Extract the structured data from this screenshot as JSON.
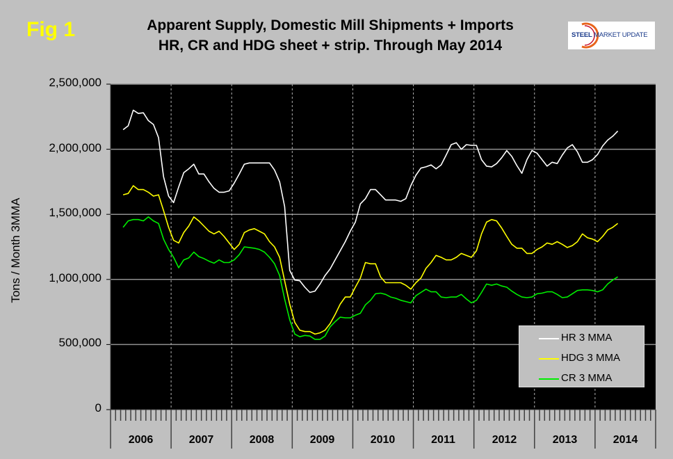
{
  "header": {
    "fig_label": "Fig 1",
    "title_line1": "Apparent Supply, Domestic Mill Shipments + Imports",
    "title_line2": "HR, CR and HDG sheet + strip. Through May 2014",
    "logo_text": "STEEL MARKET UPDATE"
  },
  "chart_data": {
    "type": "line",
    "title": "Apparent Supply, Domestic Mill Shipments + Imports HR, CR and HDG sheet + strip. Through May 2014",
    "xlabel": "",
    "ylabel": "Tons / Month 3MMA",
    "ylim": [
      0,
      2500000
    ],
    "yticks": [
      "0",
      "500,000",
      "1,000,000",
      "1,500,000",
      "2,000,000",
      "2,500,000"
    ],
    "ytick_values": [
      0,
      500000,
      1000000,
      1500000,
      2000000,
      2500000
    ],
    "xtick_labels": [
      "2006",
      "2007",
      "2008",
      "2009",
      "2010",
      "2011",
      "2012",
      "2013",
      "2014"
    ],
    "xlim": [
      "2006-01",
      "2014-12"
    ],
    "grid": "horizontal solid at major y ticks, vertical dotted at year boundaries",
    "background": "#000000",
    "legend_position": "bottom-right",
    "x": [
      "2006-03",
      "2006-04",
      "2006-05",
      "2006-06",
      "2006-07",
      "2006-08",
      "2006-09",
      "2006-10",
      "2006-11",
      "2006-12",
      "2007-01",
      "2007-02",
      "2007-03",
      "2007-04",
      "2007-05",
      "2007-06",
      "2007-07",
      "2007-08",
      "2007-09",
      "2007-10",
      "2007-11",
      "2007-12",
      "2008-01",
      "2008-02",
      "2008-03",
      "2008-04",
      "2008-05",
      "2008-06",
      "2008-07",
      "2008-08",
      "2008-09",
      "2008-10",
      "2008-11",
      "2008-12",
      "2009-01",
      "2009-02",
      "2009-03",
      "2009-04",
      "2009-05",
      "2009-06",
      "2009-07",
      "2009-08",
      "2009-09",
      "2009-10",
      "2009-11",
      "2009-12",
      "2010-01",
      "2010-02",
      "2010-03",
      "2010-04",
      "2010-05",
      "2010-06",
      "2010-07",
      "2010-08",
      "2010-09",
      "2010-10",
      "2010-11",
      "2010-12",
      "2011-01",
      "2011-02",
      "2011-03",
      "2011-04",
      "2011-05",
      "2011-06",
      "2011-07",
      "2011-08",
      "2011-09",
      "2011-10",
      "2011-11",
      "2011-12",
      "2012-01",
      "2012-02",
      "2012-03",
      "2012-04",
      "2012-05",
      "2012-06",
      "2012-07",
      "2012-08",
      "2012-09",
      "2012-10",
      "2012-11",
      "2012-12",
      "2013-01",
      "2013-02",
      "2013-03",
      "2013-04",
      "2013-05",
      "2013-06",
      "2013-07",
      "2013-08",
      "2013-09",
      "2013-10",
      "2013-11",
      "2013-12",
      "2014-01",
      "2014-02",
      "2014-03",
      "2014-04",
      "2014-05"
    ],
    "series": [
      {
        "name": "HR 3 MMA",
        "color": "#ffffff",
        "values": [
          2150000,
          2180000,
          2300000,
          2275000,
          2280000,
          2220000,
          2190000,
          2090000,
          1790000,
          1640000,
          1590000,
          1710000,
          1820000,
          1850000,
          1885000,
          1810000,
          1810000,
          1750000,
          1700000,
          1670000,
          1670000,
          1680000,
          1740000,
          1810000,
          1885000,
          1895000,
          1895000,
          1895000,
          1895000,
          1895000,
          1840000,
          1750000,
          1560000,
          1070000,
          995000,
          990000,
          940000,
          900000,
          910000,
          965000,
          1030000,
          1080000,
          1150000,
          1220000,
          1290000,
          1370000,
          1440000,
          1580000,
          1620000,
          1690000,
          1690000,
          1650000,
          1610000,
          1610000,
          1610000,
          1600000,
          1620000,
          1720000,
          1800000,
          1855000,
          1865000,
          1880000,
          1850000,
          1880000,
          1955000,
          2035000,
          2050000,
          2000000,
          2035000,
          2030000,
          2030000,
          1920000,
          1870000,
          1865000,
          1890000,
          1935000,
          1990000,
          1945000,
          1875000,
          1815000,
          1920000,
          1990000,
          1970000,
          1920000,
          1870000,
          1900000,
          1890000,
          1955000,
          2010000,
          2035000,
          1980000,
          1900000,
          1900000,
          1920000,
          1960000,
          2025000,
          2070000,
          2100000,
          2140000
        ]
      },
      {
        "name": "HDG 3 MMA",
        "color": "#ffff00",
        "values": [
          1650000,
          1660000,
          1720000,
          1690000,
          1690000,
          1670000,
          1640000,
          1650000,
          1530000,
          1400000,
          1300000,
          1280000,
          1360000,
          1410000,
          1480000,
          1450000,
          1410000,
          1370000,
          1350000,
          1370000,
          1330000,
          1280000,
          1230000,
          1270000,
          1360000,
          1380000,
          1390000,
          1370000,
          1350000,
          1290000,
          1250000,
          1170000,
          990000,
          810000,
          670000,
          610000,
          600000,
          600000,
          580000,
          590000,
          610000,
          660000,
          730000,
          810000,
          865000,
          865000,
          940000,
          1010000,
          1130000,
          1120000,
          1120000,
          1020000,
          975000,
          975000,
          975000,
          975000,
          955000,
          925000,
          975000,
          1010000,
          1085000,
          1130000,
          1185000,
          1170000,
          1150000,
          1150000,
          1170000,
          1200000,
          1185000,
          1170000,
          1220000,
          1350000,
          1440000,
          1460000,
          1450000,
          1395000,
          1330000,
          1270000,
          1240000,
          1240000,
          1200000,
          1200000,
          1230000,
          1250000,
          1280000,
          1270000,
          1290000,
          1270000,
          1245000,
          1260000,
          1290000,
          1350000,
          1320000,
          1310000,
          1290000,
          1330000,
          1380000,
          1400000,
          1430000
        ]
      },
      {
        "name": "CR 3 MMA",
        "color": "#00ee00",
        "values": [
          1400000,
          1450000,
          1460000,
          1460000,
          1450000,
          1480000,
          1450000,
          1430000,
          1310000,
          1230000,
          1170000,
          1090000,
          1150000,
          1165000,
          1210000,
          1175000,
          1160000,
          1140000,
          1125000,
          1150000,
          1130000,
          1130000,
          1150000,
          1190000,
          1250000,
          1245000,
          1240000,
          1230000,
          1210000,
          1170000,
          1120000,
          1030000,
          850000,
          690000,
          580000,
          560000,
          570000,
          565000,
          540000,
          540000,
          565000,
          635000,
          675000,
          710000,
          705000,
          705000,
          725000,
          740000,
          805000,
          840000,
          890000,
          895000,
          885000,
          865000,
          855000,
          840000,
          830000,
          820000,
          875000,
          900000,
          925000,
          905000,
          905000,
          865000,
          860000,
          865000,
          865000,
          885000,
          850000,
          820000,
          840000,
          900000,
          965000,
          955000,
          965000,
          950000,
          940000,
          910000,
          885000,
          865000,
          860000,
          865000,
          890000,
          895000,
          905000,
          905000,
          885000,
          860000,
          865000,
          890000,
          915000,
          920000,
          920000,
          915000,
          905000,
          920000,
          965000,
          995000,
          1020000
        ]
      }
    ]
  }
}
